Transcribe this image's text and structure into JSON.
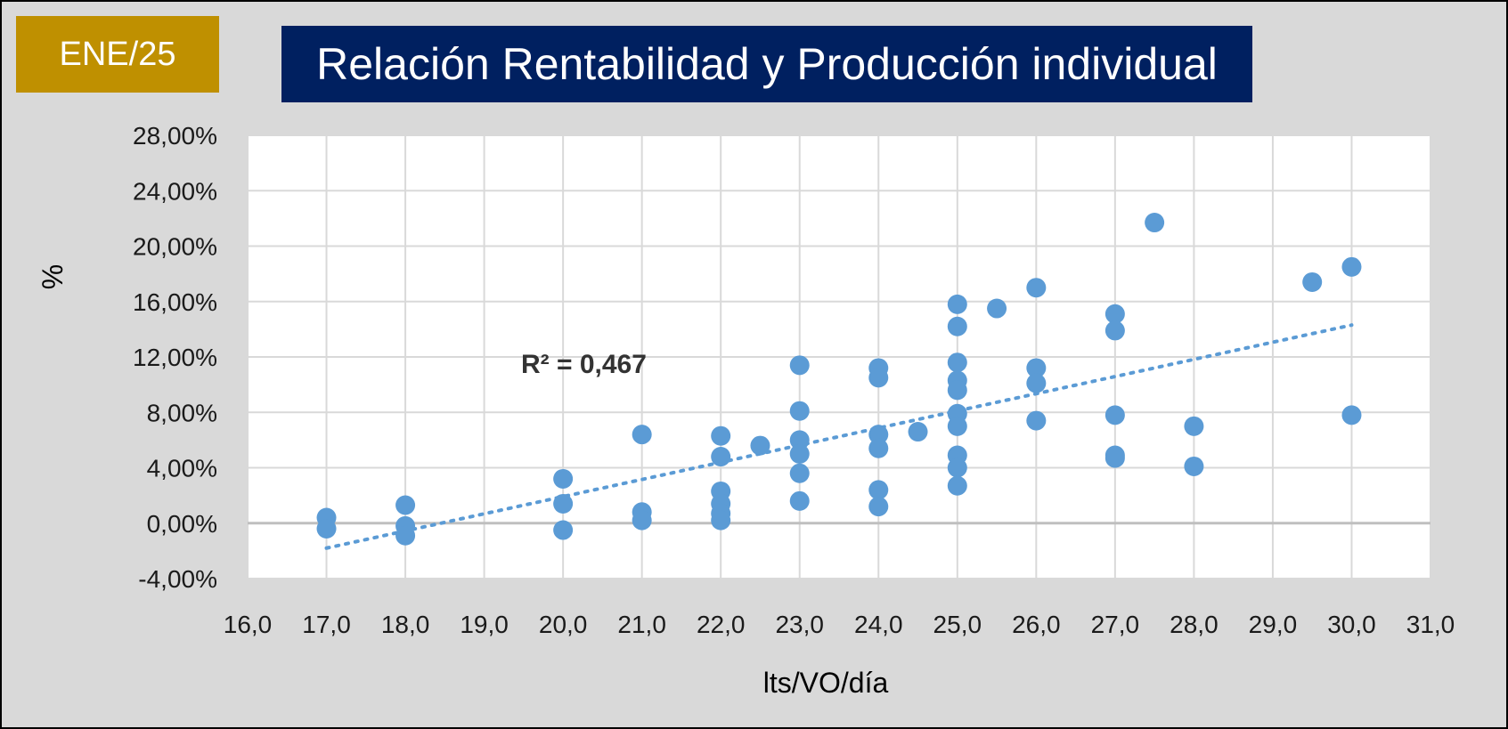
{
  "header": {
    "badge": "ENE/25",
    "title": "Relación Rentabilidad y Producción individual"
  },
  "colors": {
    "background": "#d9d9d9",
    "badge": "#bf9000",
    "title_box": "#002060",
    "points": "#5b9bd5",
    "trendline": "#5b9bd5"
  },
  "chart_data": {
    "type": "scatter",
    "title": "Relación Rentabilidad y Producción individual",
    "xlabel": "lts/VO/día",
    "ylabel": "%",
    "xlim": [
      16,
      31
    ],
    "ylim": [
      -4,
      28
    ],
    "x_ticks": [
      16,
      17,
      18,
      19,
      20,
      21,
      22,
      23,
      24,
      25,
      26,
      27,
      28,
      29,
      30,
      31
    ],
    "y_ticks": [
      -4,
      0,
      4,
      8,
      12,
      16,
      20,
      24,
      28
    ],
    "x_tick_labels": [
      "16,0",
      "17,0",
      "18,0",
      "19,0",
      "20,0",
      "21,0",
      "22,0",
      "23,0",
      "24,0",
      "25,0",
      "26,0",
      "27,0",
      "28,0",
      "29,0",
      "30,0",
      "31,0"
    ],
    "y_tick_labels": [
      "-4,00%",
      "0,00%",
      "4,00%",
      "8,00%",
      "12,00%",
      "16,00%",
      "20,00%",
      "24,00%",
      "28,00%"
    ],
    "grid": true,
    "legend": "none",
    "annotation": "R² = 0,467",
    "trendline": {
      "type": "linear",
      "x": [
        17,
        30
      ],
      "y": [
        -1.8,
        14.3
      ],
      "style": "dotted"
    },
    "points": [
      {
        "x": 17,
        "y": 0.4
      },
      {
        "x": 17,
        "y": -0.4
      },
      {
        "x": 18,
        "y": 1.3
      },
      {
        "x": 18,
        "y": -0.2
      },
      {
        "x": 18,
        "y": -0.9
      },
      {
        "x": 20,
        "y": 3.2
      },
      {
        "x": 20,
        "y": 1.4
      },
      {
        "x": 20,
        "y": -0.5
      },
      {
        "x": 21,
        "y": 6.4
      },
      {
        "x": 21,
        "y": 0.8
      },
      {
        "x": 21,
        "y": 0.2
      },
      {
        "x": 22,
        "y": 6.3
      },
      {
        "x": 22,
        "y": 4.8
      },
      {
        "x": 22,
        "y": 2.3
      },
      {
        "x": 22,
        "y": 1.4
      },
      {
        "x": 22,
        "y": 0.7
      },
      {
        "x": 22,
        "y": 0.2
      },
      {
        "x": 22.5,
        "y": 5.6
      },
      {
        "x": 23,
        "y": 11.4
      },
      {
        "x": 23,
        "y": 8.1
      },
      {
        "x": 23,
        "y": 6.0
      },
      {
        "x": 23,
        "y": 5.0
      },
      {
        "x": 23,
        "y": 3.6
      },
      {
        "x": 23,
        "y": 1.6
      },
      {
        "x": 24,
        "y": 11.2
      },
      {
        "x": 24,
        "y": 10.5
      },
      {
        "x": 24,
        "y": 6.4
      },
      {
        "x": 24,
        "y": 5.4
      },
      {
        "x": 24,
        "y": 2.4
      },
      {
        "x": 24,
        "y": 1.2
      },
      {
        "x": 24.5,
        "y": 6.6
      },
      {
        "x": 25,
        "y": 15.8
      },
      {
        "x": 25,
        "y": 14.2
      },
      {
        "x": 25,
        "y": 11.6
      },
      {
        "x": 25,
        "y": 10.3
      },
      {
        "x": 25,
        "y": 9.6
      },
      {
        "x": 25,
        "y": 7.9
      },
      {
        "x": 25,
        "y": 7.0
      },
      {
        "x": 25,
        "y": 4.9
      },
      {
        "x": 25,
        "y": 4.0
      },
      {
        "x": 25,
        "y": 2.7
      },
      {
        "x": 25.5,
        "y": 15.5
      },
      {
        "x": 26,
        "y": 17.0
      },
      {
        "x": 26,
        "y": 11.2
      },
      {
        "x": 26,
        "y": 10.1
      },
      {
        "x": 26,
        "y": 7.4
      },
      {
        "x": 27,
        "y": 15.1
      },
      {
        "x": 27,
        "y": 13.9
      },
      {
        "x": 27,
        "y": 7.8
      },
      {
        "x": 27,
        "y": 4.9
      },
      {
        "x": 27,
        "y": 4.7
      },
      {
        "x": 27.5,
        "y": 21.7
      },
      {
        "x": 28,
        "y": 7.0
      },
      {
        "x": 28,
        "y": 4.1
      },
      {
        "x": 29.5,
        "y": 17.4
      },
      {
        "x": 30,
        "y": 18.5
      },
      {
        "x": 30,
        "y": 7.8
      }
    ]
  }
}
